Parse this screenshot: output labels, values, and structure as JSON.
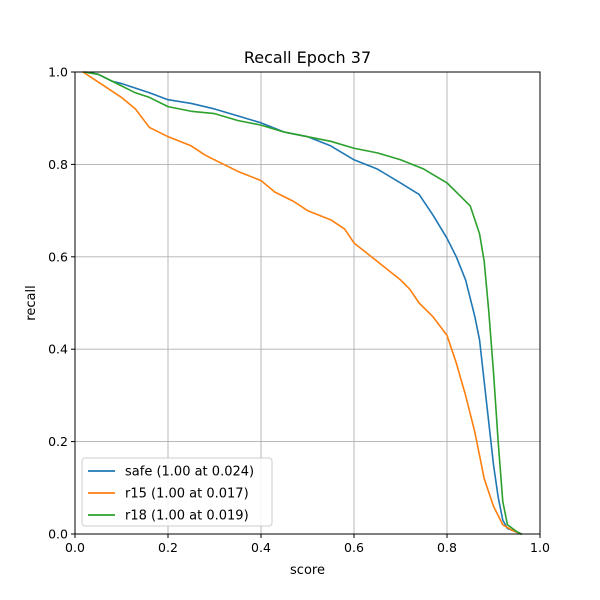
{
  "chart_data": {
    "type": "line",
    "title": "Recall Epoch 37",
    "xlabel": "score",
    "ylabel": "recall",
    "xlim": [
      0,
      1
    ],
    "ylim": [
      0,
      1
    ],
    "grid": true,
    "legend_position": "lower-left",
    "x_ticks": [
      "0.0",
      "0.2",
      "0.4",
      "0.6",
      "0.8",
      "1.0"
    ],
    "y_ticks": [
      "0.0",
      "0.2",
      "0.4",
      "0.6",
      "0.8",
      "1.0"
    ],
    "series": [
      {
        "name": "safe (1.00 at 0.024)",
        "color": "#1f77b4",
        "points": [
          [
            0.024,
            1.0
          ],
          [
            0.05,
            0.995
          ],
          [
            0.08,
            0.98
          ],
          [
            0.1,
            0.975
          ],
          [
            0.13,
            0.965
          ],
          [
            0.16,
            0.955
          ],
          [
            0.2,
            0.94
          ],
          [
            0.25,
            0.932
          ],
          [
            0.3,
            0.92
          ],
          [
            0.35,
            0.905
          ],
          [
            0.4,
            0.89
          ],
          [
            0.45,
            0.87
          ],
          [
            0.5,
            0.86
          ],
          [
            0.55,
            0.84
          ],
          [
            0.6,
            0.81
          ],
          [
            0.65,
            0.79
          ],
          [
            0.7,
            0.76
          ],
          [
            0.74,
            0.735
          ],
          [
            0.77,
            0.69
          ],
          [
            0.8,
            0.64
          ],
          [
            0.82,
            0.6
          ],
          [
            0.84,
            0.55
          ],
          [
            0.86,
            0.47
          ],
          [
            0.87,
            0.42
          ],
          [
            0.88,
            0.33
          ],
          [
            0.89,
            0.24
          ],
          [
            0.9,
            0.15
          ],
          [
            0.91,
            0.08
          ],
          [
            0.92,
            0.03
          ],
          [
            0.93,
            0.012
          ],
          [
            0.95,
            0.004
          ],
          [
            0.96,
            0.0
          ]
        ]
      },
      {
        "name": "r15 (1.00 at 0.017)",
        "color": "#ff7f0e",
        "points": [
          [
            0.017,
            1.0
          ],
          [
            0.04,
            0.985
          ],
          [
            0.07,
            0.965
          ],
          [
            0.1,
            0.945
          ],
          [
            0.13,
            0.92
          ],
          [
            0.16,
            0.88
          ],
          [
            0.2,
            0.86
          ],
          [
            0.25,
            0.84
          ],
          [
            0.28,
            0.82
          ],
          [
            0.3,
            0.81
          ],
          [
            0.35,
            0.785
          ],
          [
            0.4,
            0.765
          ],
          [
            0.43,
            0.74
          ],
          [
            0.47,
            0.72
          ],
          [
            0.5,
            0.7
          ],
          [
            0.55,
            0.68
          ],
          [
            0.58,
            0.66
          ],
          [
            0.6,
            0.63
          ],
          [
            0.65,
            0.59
          ],
          [
            0.7,
            0.55
          ],
          [
            0.72,
            0.53
          ],
          [
            0.74,
            0.5
          ],
          [
            0.77,
            0.47
          ],
          [
            0.8,
            0.43
          ],
          [
            0.82,
            0.37
          ],
          [
            0.84,
            0.3
          ],
          [
            0.86,
            0.22
          ],
          [
            0.88,
            0.12
          ],
          [
            0.9,
            0.06
          ],
          [
            0.92,
            0.02
          ],
          [
            0.94,
            0.008
          ],
          [
            0.96,
            0.0
          ]
        ]
      },
      {
        "name": "r18 (1.00 at 0.019)",
        "color": "#2ca02c",
        "points": [
          [
            0.019,
            1.0
          ],
          [
            0.05,
            0.995
          ],
          [
            0.08,
            0.98
          ],
          [
            0.1,
            0.97
          ],
          [
            0.13,
            0.955
          ],
          [
            0.16,
            0.945
          ],
          [
            0.2,
            0.925
          ],
          [
            0.25,
            0.915
          ],
          [
            0.3,
            0.91
          ],
          [
            0.35,
            0.895
          ],
          [
            0.4,
            0.885
          ],
          [
            0.45,
            0.87
          ],
          [
            0.5,
            0.86
          ],
          [
            0.55,
            0.85
          ],
          [
            0.6,
            0.835
          ],
          [
            0.65,
            0.825
          ],
          [
            0.7,
            0.81
          ],
          [
            0.75,
            0.79
          ],
          [
            0.8,
            0.76
          ],
          [
            0.83,
            0.73
          ],
          [
            0.85,
            0.71
          ],
          [
            0.87,
            0.65
          ],
          [
            0.88,
            0.59
          ],
          [
            0.89,
            0.48
          ],
          [
            0.9,
            0.35
          ],
          [
            0.91,
            0.2
          ],
          [
            0.92,
            0.07
          ],
          [
            0.93,
            0.02
          ],
          [
            0.95,
            0.005
          ],
          [
            0.96,
            0.0
          ]
        ]
      }
    ]
  }
}
